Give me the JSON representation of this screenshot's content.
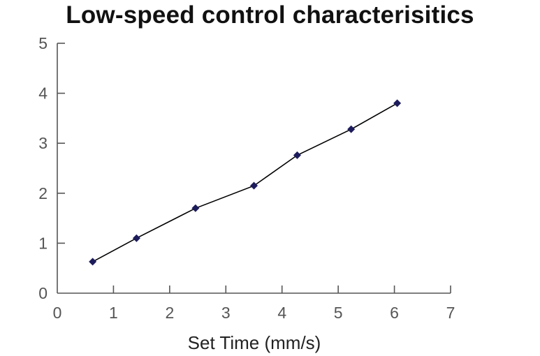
{
  "chart_data": {
    "type": "line",
    "title": "Low-speed control characterisitics",
    "xlabel": "Set Time (mm/s)",
    "ylabel": "",
    "xlim": [
      0,
      7
    ],
    "ylim": [
      0,
      5
    ],
    "x_ticks": [
      "0",
      "1",
      "2",
      "3",
      "4",
      "5",
      "6",
      "7"
    ],
    "y_ticks": [
      "0",
      "1",
      "2",
      "3",
      "4",
      "5"
    ],
    "grid": false,
    "legend": "none",
    "series": [
      {
        "x": [
          0.63,
          1.41,
          2.46,
          3.5,
          4.27,
          5.23,
          6.05
        ],
        "y": [
          0.63,
          1.1,
          1.7,
          2.15,
          2.76,
          3.28,
          3.8
        ]
      }
    ],
    "colors": {
      "line": "#000000",
      "marker": "#1c1c5c",
      "axis": "#555555"
    }
  }
}
